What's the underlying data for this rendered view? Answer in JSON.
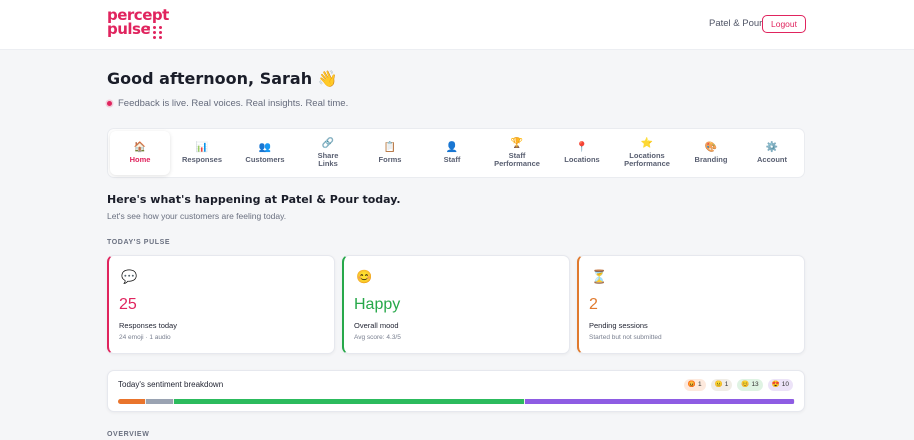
{
  "header": {
    "logo_line1": "percept",
    "logo_line2": "pulse",
    "org_name": "Patel & Pour",
    "logout_label": "Logout"
  },
  "greeting": {
    "text": "Good afternoon, Sarah",
    "emoji": "👋",
    "live_text": "Feedback is live. Real voices. Real insights. Real time."
  },
  "nav": {
    "items": [
      {
        "icon": "🏠",
        "label": "Home",
        "active": true
      },
      {
        "icon": "📊",
        "label": "Responses"
      },
      {
        "icon": "👥",
        "label": "Customers"
      },
      {
        "icon": "🔗",
        "label": "Share\nLinks"
      },
      {
        "icon": "📋",
        "label": "Forms"
      },
      {
        "icon": "👤",
        "label": "Staff"
      },
      {
        "icon": "🏆",
        "label": "Staff\nPerformance"
      },
      {
        "icon": "📍",
        "label": "Locations"
      },
      {
        "icon": "⭐",
        "label": "Locations\nPerformance"
      },
      {
        "icon": "🎨",
        "label": "Branding"
      },
      {
        "icon": "⚙️",
        "label": "Account"
      }
    ]
  },
  "summary": {
    "heading": "Here's what's happening at Patel & Pour today.",
    "subheading": "Let's see how your customers are feeling today.",
    "pulse_label": "TODAY'S PULSE",
    "overview_label": "OVERVIEW"
  },
  "cards": [
    {
      "icon": "💬",
      "value": "25",
      "label": "Responses today",
      "meta": "24 emoji · 1 audio",
      "accent": "#e0245e"
    },
    {
      "icon": "😊",
      "value": "Happy",
      "label": "Overall mood",
      "meta": "Avg score: 4.3/5",
      "accent": "#27a84a"
    },
    {
      "icon": "⏳",
      "value": "2",
      "label": "Pending sessions",
      "meta": "Started but not submitted",
      "accent": "#e07a2e"
    }
  ],
  "sentiment": {
    "title": "Today's sentiment breakdown",
    "chips": [
      {
        "emoji": "😡",
        "count": "1",
        "bg": "#fde9dd"
      },
      {
        "emoji": "😐",
        "count": "1",
        "bg": "#f0ede6"
      },
      {
        "emoji": "😊",
        "count": "13",
        "bg": "#dff3e3"
      },
      {
        "emoji": "😍",
        "count": "10",
        "bg": "#ece3f8"
      }
    ],
    "segments": [
      {
        "value": 1,
        "color": "#e9742c"
      },
      {
        "value": 1,
        "color": "#9aa3b2"
      },
      {
        "value": 13,
        "color": "#2cbb5d"
      },
      {
        "value": 10,
        "color": "#8e5ce3"
      }
    ]
  }
}
